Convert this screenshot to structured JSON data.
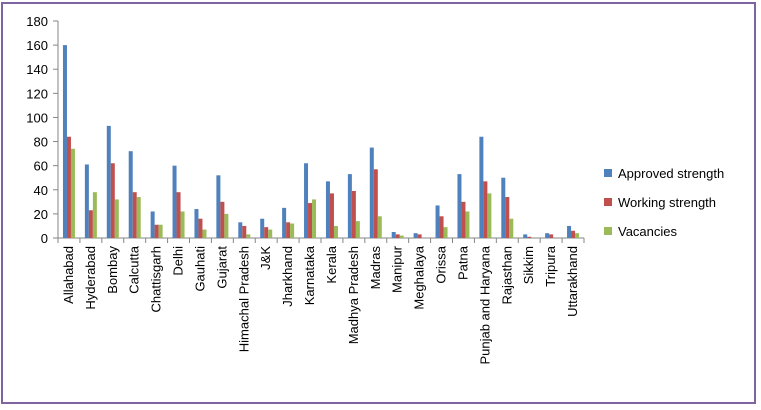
{
  "chart_data": {
    "type": "bar",
    "ylim": [
      0,
      180
    ],
    "ytick_step": 20,
    "grid": false,
    "legend_position": "right",
    "categories": [
      "Allahabad",
      "Hyderabad",
      "Bombay",
      "Calcutta",
      "Chattisgarh",
      "Delhi",
      "Gauhati",
      "Gujarat",
      "Himachal Pradesh",
      "J&K",
      "Jharkhand",
      "Karnataka",
      "Kerala",
      "Madhya Pradesh",
      "Madras",
      "Manipur",
      "Meghalaya",
      "Orissa",
      "Patna",
      "Punjab and Haryana",
      "Rajasthan",
      "Sikkim",
      "Tripura",
      "Uttarakhand"
    ],
    "series": [
      {
        "name": "Approved strength",
        "color": "#4f81bd",
        "values": [
          160,
          61,
          93,
          72,
          22,
          60,
          24,
          52,
          13,
          16,
          25,
          62,
          47,
          53,
          75,
          5,
          4,
          27,
          53,
          84,
          50,
          3,
          4,
          10
        ]
      },
      {
        "name": "Working strength",
        "color": "#c0504d",
        "values": [
          84,
          23,
          62,
          38,
          11,
          38,
          16,
          30,
          10,
          9,
          13,
          29,
          37,
          39,
          57,
          3,
          3,
          18,
          30,
          47,
          34,
          1,
          3,
          6
        ]
      },
      {
        "name": "Vacancies",
        "color": "#9bbb59",
        "values": [
          74,
          38,
          32,
          34,
          11,
          22,
          7,
          20,
          3,
          7,
          12,
          32,
          10,
          14,
          18,
          2,
          0,
          9,
          22,
          37,
          16,
          0,
          0,
          4
        ]
      }
    ]
  }
}
